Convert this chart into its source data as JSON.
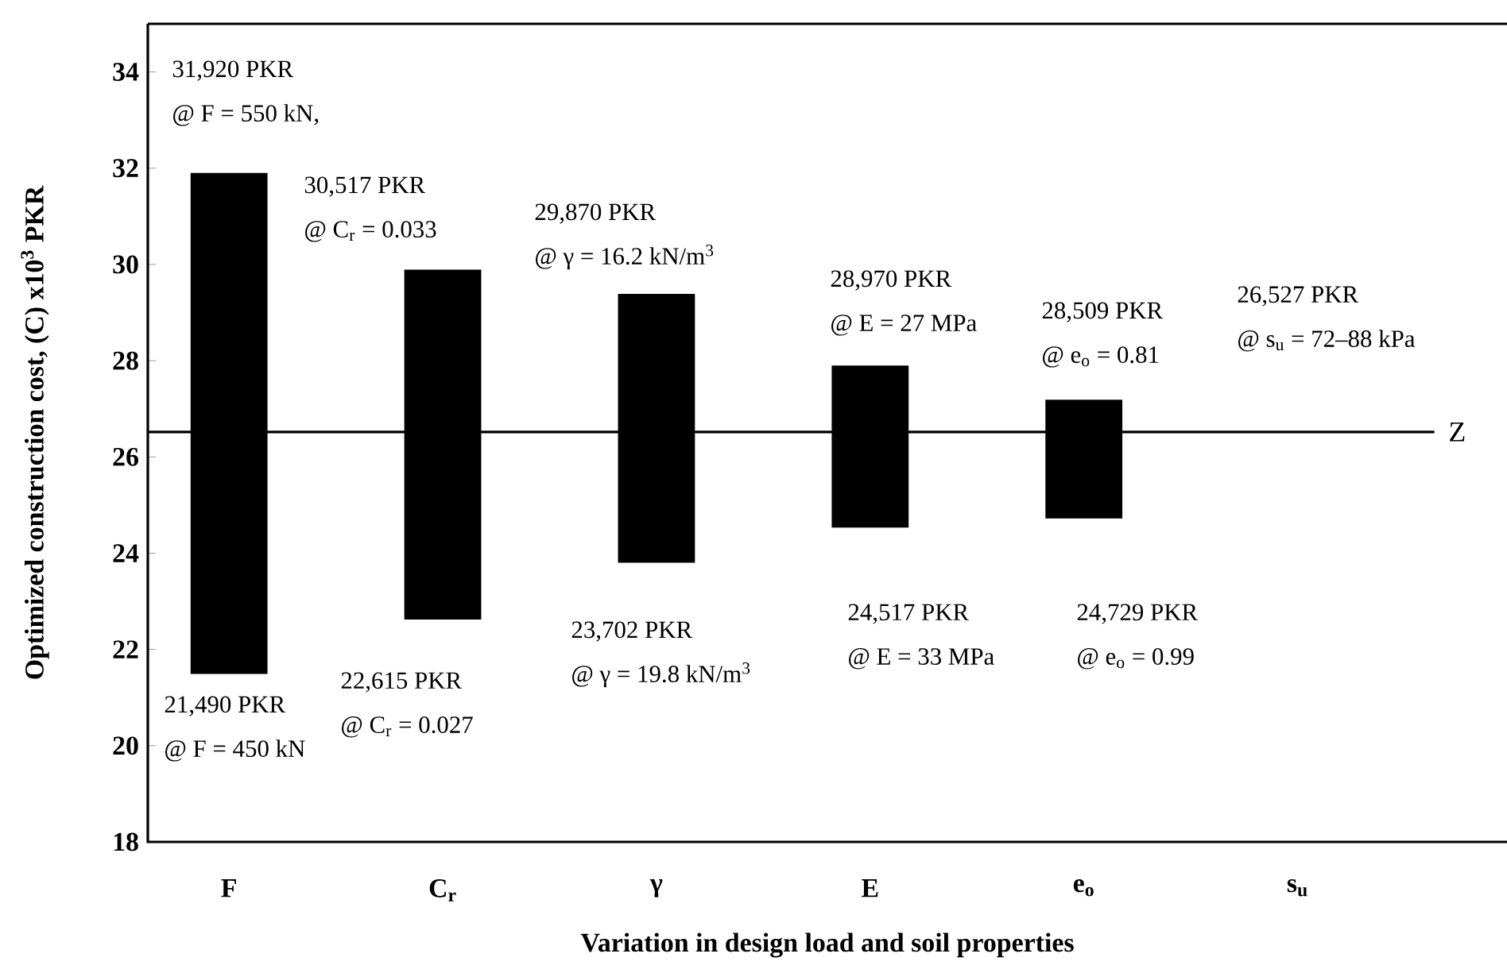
{
  "chart_data": {
    "type": "bar",
    "ylabel": "Optimized construction cost, (C) x10$^{3}$ PKR",
    "xlabel": "Variation in design load and soil properties",
    "categories": [
      "F",
      "C$_{r}$",
      "γ",
      "E",
      "e$_{o}$",
      "s$_{u}$"
    ],
    "base": [
      21.49,
      22.62,
      23.8,
      24.53,
      24.72,
      null
    ],
    "values": [
      10.41,
      7.27,
      5.59,
      3.37,
      2.47,
      null
    ],
    "color": "#000000",
    "ylim": [
      18,
      35
    ],
    "yticks": [
      18,
      20,
      22,
      24,
      26,
      28,
      30,
      32,
      34
    ],
    "ref_lines": [
      {
        "axis": "y",
        "value": 26.52,
        "label": "Z"
      }
    ],
    "annotations": [
      "31,920 PKR",
      "@ F = 550 kN,",
      "30,517 PKR",
      "@ C$_{r}$ = 0.033",
      "29,870 PKR",
      "@ γ = 16.2 kN/m$^{3}$",
      "28,970 PKR",
      "@ E = 27 MPa",
      "28,509 PKR",
      "@ e$_{o}$ = 0.81",
      "26,527 PKR",
      "@ s$_{u}$ = 72–88 kPa",
      "21,490 PKR",
      "@ F = 450 kN",
      "22,615 PKR",
      "@ C$_{r}$ = 0.027",
      "23,702 PKR",
      "@ γ = 19.8 kN/m$^{3}$",
      "24,517 PKR",
      "@ E = 33 MPa",
      "24,729 PKR",
      "@ e$_{o}$ = 0.99"
    ]
  }
}
